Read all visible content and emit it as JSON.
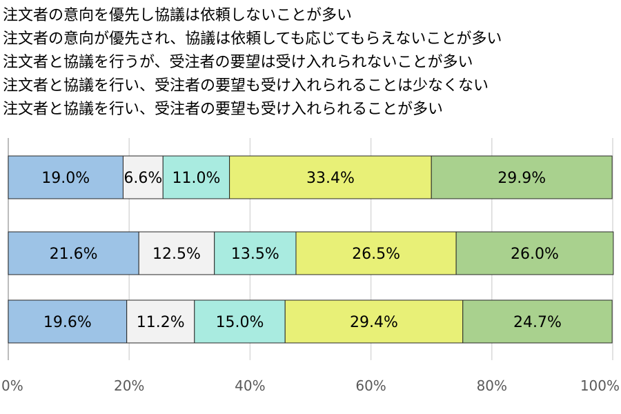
{
  "chart_data": {
    "type": "bar",
    "orientation": "horizontal",
    "stacked": true,
    "grid": true,
    "legend_position": "top-left",
    "xlim": [
      0,
      100
    ],
    "x_ticks": [
      "0%",
      "20%",
      "40%",
      "60%",
      "80%",
      "100%"
    ],
    "categories": [
      "",
      "",
      ""
    ],
    "series": [
      {
        "name": "注文者の意向を優先し協議は依頼しないことが多い",
        "color": "#9DC3E6",
        "values": [
          19.0,
          21.6,
          19.6
        ],
        "labels": [
          "19.0%",
          "21.6%",
          "19.6%"
        ]
      },
      {
        "name": "注文者の意向が優先され、協議は依頼しても応じてもらえないことが多い",
        "color": "#F2F2F2",
        "values": [
          6.6,
          12.5,
          11.2
        ],
        "labels": [
          "6.6%",
          "12.5%",
          "11.2%"
        ]
      },
      {
        "name": "注文者と協議を行うが、受注者の要望は受け入れられないことが多い",
        "color": "#A9EBE0",
        "values": [
          11.0,
          13.5,
          15.0
        ],
        "labels": [
          "11.0%",
          "13.5%",
          "15.0%"
        ]
      },
      {
        "name": "注文者と協議を行い、受注者の要望も受け入れられることは少なくない",
        "color": "#E8F077",
        "values": [
          33.4,
          26.5,
          29.4
        ],
        "labels": [
          "33.4%",
          "26.5%",
          "29.4%"
        ]
      },
      {
        "name": "注文者と協議を行い、受注者の要望も受け入れられることが多い",
        "color": "#A9D18E",
        "values": [
          29.9,
          26.0,
          24.7
        ],
        "labels": [
          "29.9%",
          "26.0%",
          "24.7%"
        ]
      }
    ]
  }
}
